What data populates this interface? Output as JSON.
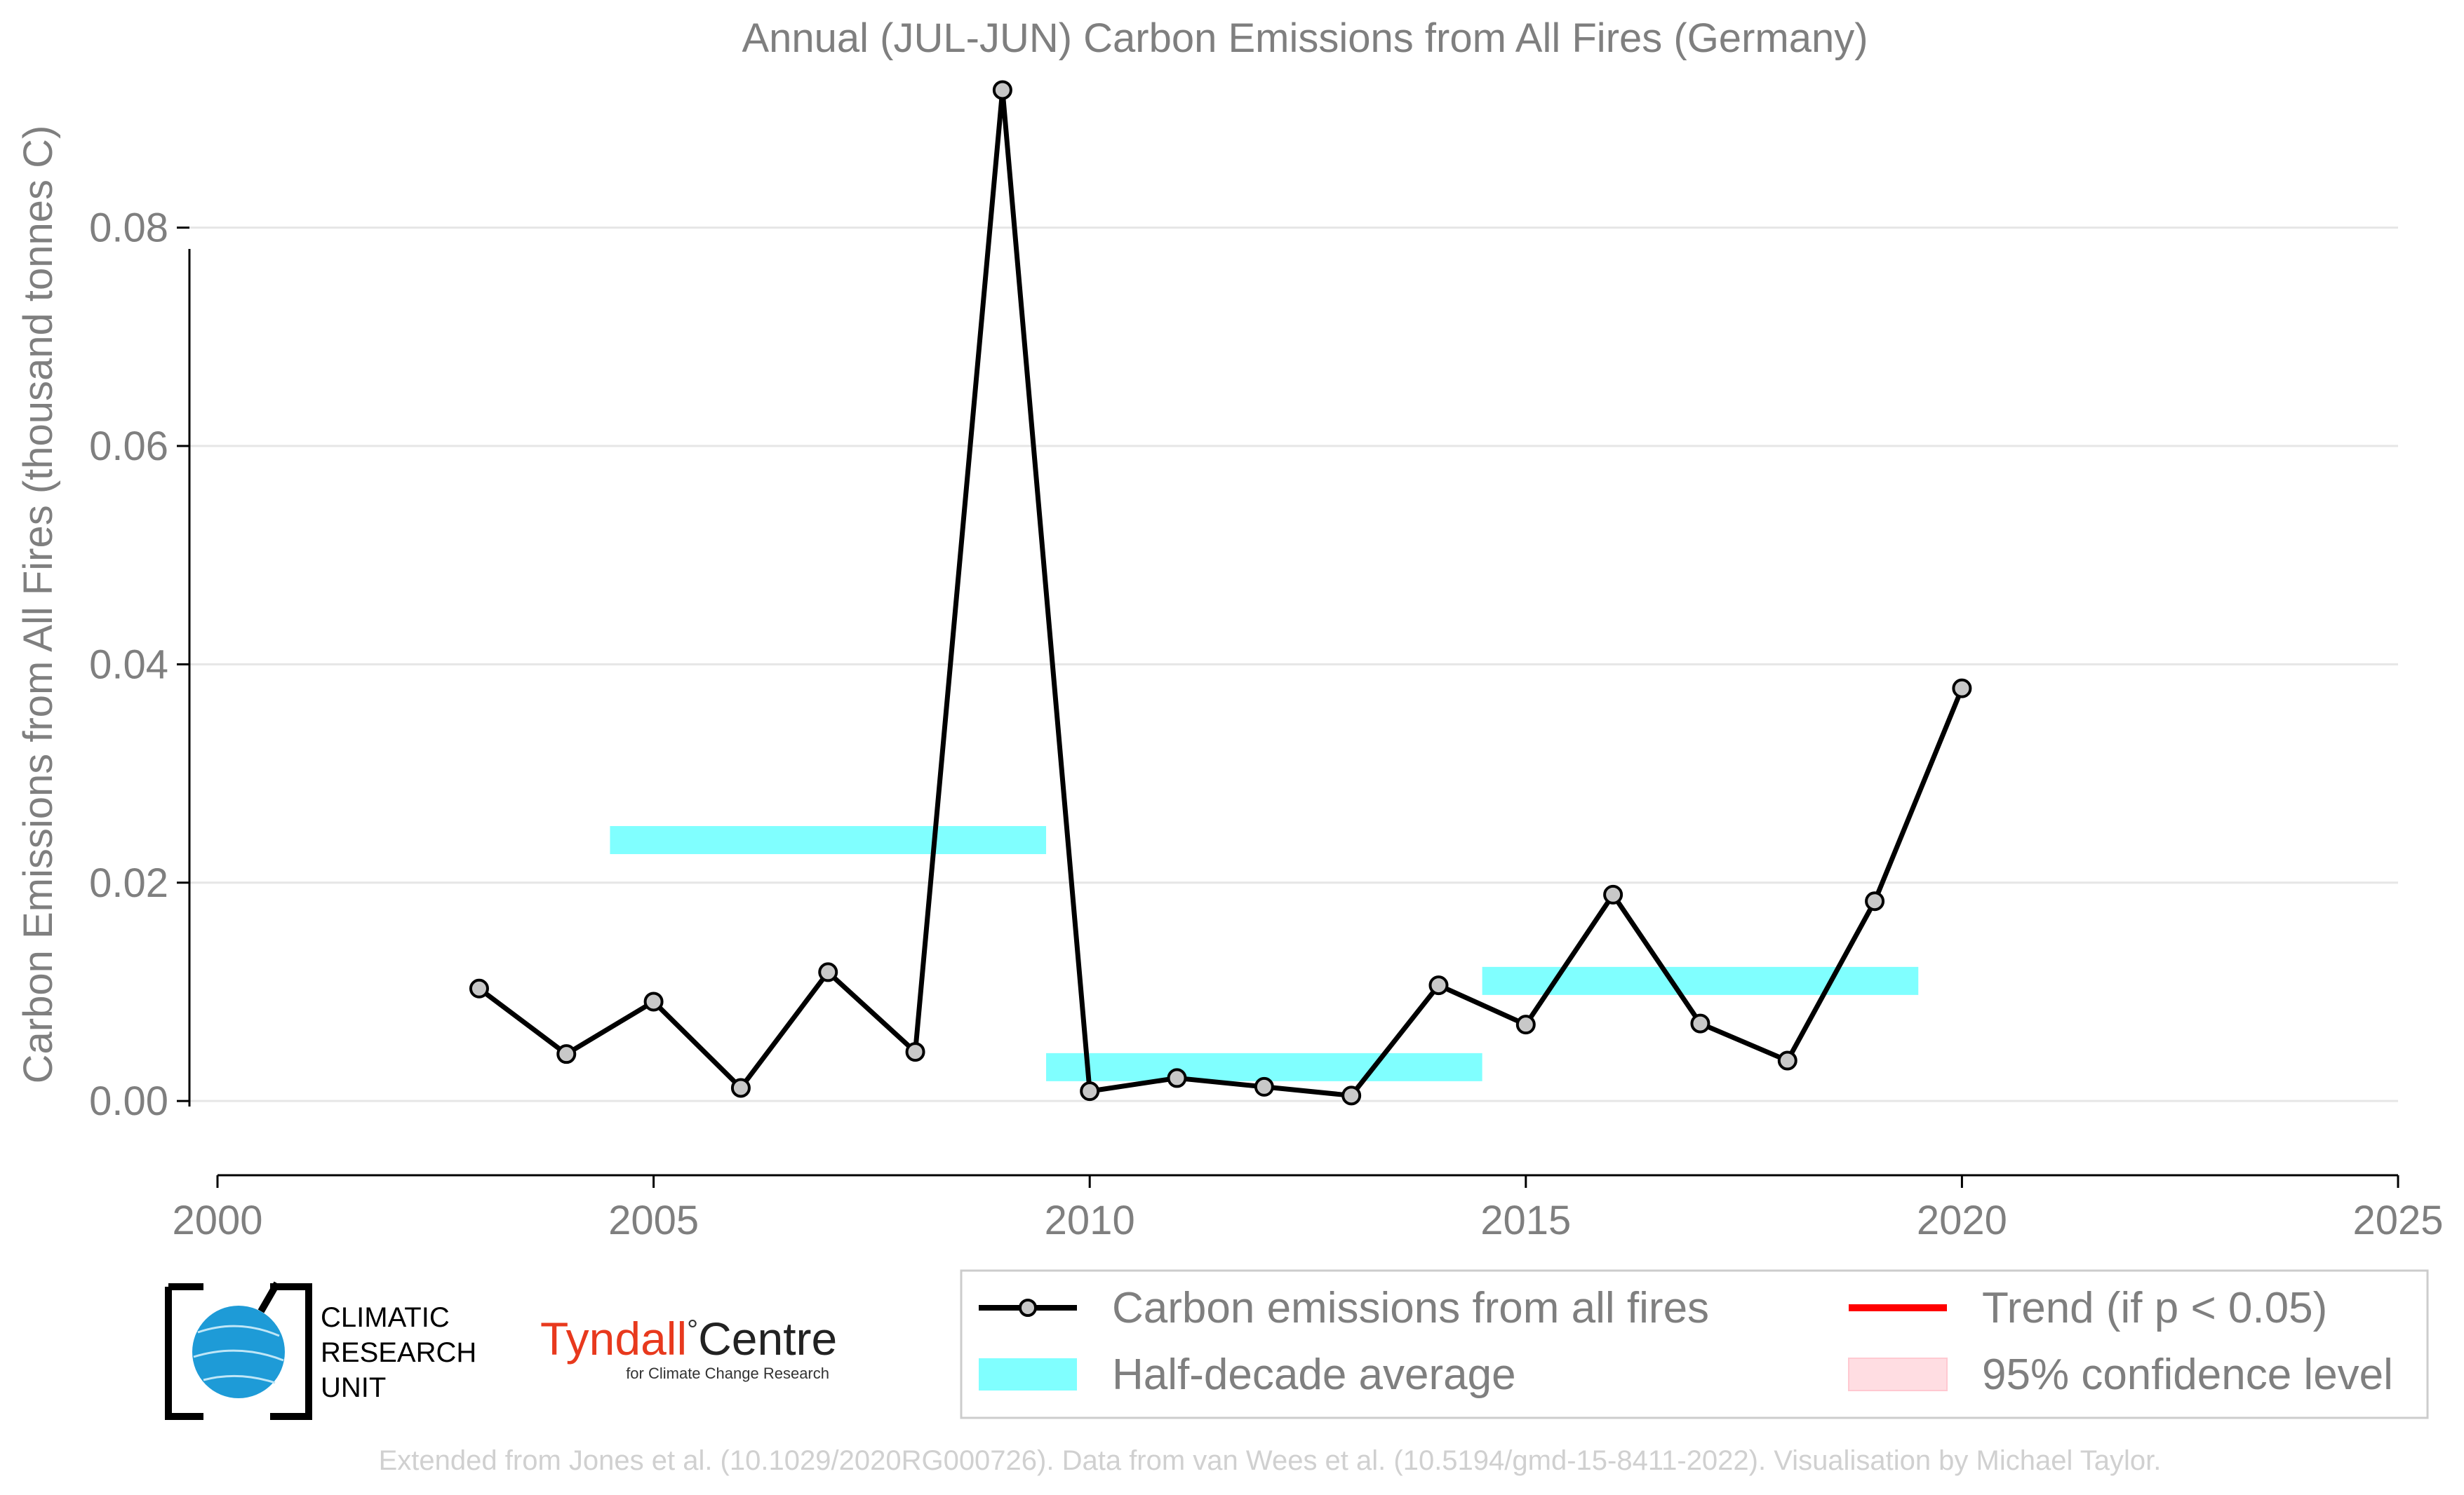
{
  "chart_data": {
    "type": "line",
    "title": "Annual (JUL-JUN) Carbon Emissions from All Fires (Germany)",
    "xlabel": "",
    "ylabel": "Carbon Emissions from All Fires (thousand tonnes C)",
    "xlim": [
      2000,
      2025
    ],
    "ylim": [
      -0.0068,
      0.0925
    ],
    "x_ticks": [
      "2000",
      "2005",
      "2010",
      "2015",
      "2020",
      "2025"
    ],
    "y_ticks": [
      "0.00",
      "0.02",
      "0.04",
      "0.06",
      "0.08"
    ],
    "y_tick_values": [
      0.0,
      0.02,
      0.04,
      0.06,
      0.08
    ],
    "x_tick_values": [
      2000,
      2005,
      2010,
      2015,
      2020,
      2025
    ],
    "grid": "horizontal",
    "series": [
      {
        "name": "Carbon emissions from all fires",
        "color": "#000000",
        "marker_fill": "#c8c8c8",
        "x": [
          2003,
          2004,
          2005,
          2006,
          2007,
          2008,
          2009,
          2010,
          2011,
          2012,
          2013,
          2014,
          2015,
          2016,
          2017,
          2018,
          2019,
          2020
        ],
        "values": [
          0.0103,
          0.0043,
          0.0091,
          0.0012,
          0.0118,
          0.0045,
          0.0926,
          0.0009,
          0.0021,
          0.0013,
          0.0005,
          0.0106,
          0.007,
          0.0189,
          0.0071,
          0.0037,
          0.0183,
          0.0378
        ]
      }
    ],
    "half_decade_average": {
      "name": "Half-decade average",
      "color": "#80ffff",
      "segments": [
        {
          "x_start": 2004.5,
          "x_end": 2009.5,
          "value": 0.0239
        },
        {
          "x_start": 2009.5,
          "x_end": 2014.5,
          "value": 0.0031
        },
        {
          "x_start": 2014.5,
          "x_end": 2019.5,
          "value": 0.011
        }
      ]
    },
    "legend": {
      "placement": "bottom-right",
      "entries": [
        {
          "label": "Carbon emissions from all fires",
          "kind": "line-marker",
          "color": "#000000"
        },
        {
          "label": "Trend (if p < 0.05)",
          "kind": "line",
          "color": "#ff0000"
        },
        {
          "label": "Half-decade average",
          "kind": "patch",
          "color": "#80ffff"
        },
        {
          "label": "95% confidence level",
          "kind": "patch",
          "color": "#ffdde2"
        }
      ]
    }
  },
  "logos": {
    "cru": [
      "CLIMATIC",
      "RESEARCH",
      "UNIT"
    ],
    "tyndall_main": "Tyndall",
    "tyndall_degree": "°",
    "tyndall_centre": "Centre",
    "tyndall_sub": "for Climate Change Research"
  },
  "credit": "Extended from Jones et al. (10.1029/2020RG000726). Data from van Wees et al. (10.5194/gmd-15-8411-2022). Visualisation by Michael Taylor."
}
